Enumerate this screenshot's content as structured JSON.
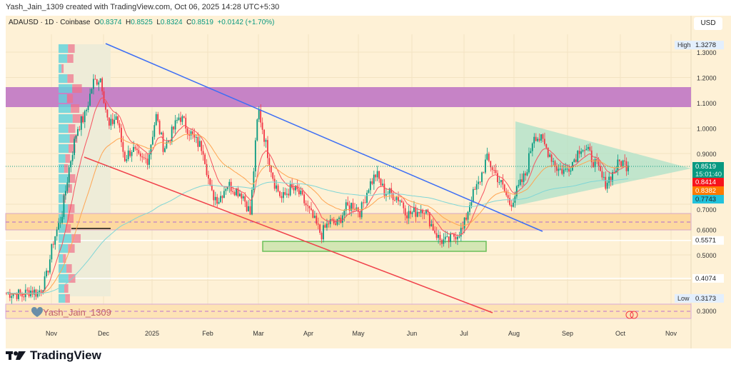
{
  "credit": "Yash_Jain_1309 created with TradingView.com, Oct 06, 2025 14:28 UTC+5:30",
  "legend": {
    "symbol": "ADAUSD · 1D · Coinbase",
    "open": "0.8374",
    "high": "0.8525",
    "low": "0.8324",
    "close": "0.8519",
    "change": "+0.0142 (+1.70%)"
  },
  "currency": "USD",
  "watermark": "Yash_Jain_1309",
  "brand": "TradingView",
  "chart_data": {
    "type": "candlestick",
    "title": "ADAUSD 1D Coinbase",
    "ylim": [
      0.27,
      1.4
    ],
    "y_ticks": [
      "1.3000",
      "1.2000",
      "1.1000",
      "1.0000",
      "0.9000",
      "0.7000",
      "0.6000",
      "0.5000",
      "0.3000"
    ],
    "x_ticks": [
      "Nov",
      "Dec",
      "2025",
      "Feb",
      "Mar",
      "Apr",
      "May",
      "Jun",
      "Jul",
      "Aug",
      "Sep",
      "Oct",
      "Nov"
    ],
    "close_path": [
      0.35,
      0.35,
      0.34,
      0.36,
      0.35,
      0.4,
      0.56,
      0.65,
      0.85,
      1.0,
      1.05,
      1.18,
      1.2,
      1.0,
      1.05,
      0.88,
      0.92,
      0.87,
      0.88,
      1.05,
      0.92,
      0.98,
      1.05,
      1.0,
      0.95,
      0.92,
      0.74,
      0.72,
      0.78,
      0.76,
      0.74,
      0.66,
      1.08,
      0.93,
      0.79,
      0.72,
      0.76,
      0.75,
      0.7,
      0.64,
      0.58,
      0.63,
      0.62,
      0.68,
      0.7,
      0.67,
      0.77,
      0.82,
      0.75,
      0.74,
      0.72,
      0.66,
      0.67,
      0.69,
      0.62,
      0.56,
      0.55,
      0.58,
      0.6,
      0.72,
      0.78,
      0.88,
      0.83,
      0.77,
      0.7,
      0.76,
      0.82,
      0.98,
      0.95,
      0.9,
      0.84,
      0.83,
      0.87,
      0.93,
      0.9,
      0.85,
      0.78,
      0.82,
      0.87,
      0.85
    ],
    "price_labels": [
      {
        "label": "High",
        "value": "1.3278",
        "color": "#e3effd"
      },
      {
        "label": "",
        "value": "0.8519",
        "sub": "15:01:40",
        "color": "#089981"
      },
      {
        "label": "",
        "value": "0.8414",
        "color": "#f7141c"
      },
      {
        "label": "",
        "value": "0.8382",
        "color": "#ff7a00"
      },
      {
        "label": "",
        "value": "0.7743",
        "color": "#22c2dc"
      },
      {
        "label": "",
        "value": "0.5571",
        "color": "#ffffff"
      },
      {
        "label": "",
        "value": "0.4074",
        "color": "#ffffff"
      },
      {
        "label": "Low",
        "value": "0.3173",
        "color": "#e3effd"
      }
    ],
    "colors": {
      "up": "#089981",
      "down": "#f23645",
      "ma_fast": "#f7525f",
      "ma_mid": "#ffa552",
      "ma_slow": "#7fd6d6"
    }
  }
}
